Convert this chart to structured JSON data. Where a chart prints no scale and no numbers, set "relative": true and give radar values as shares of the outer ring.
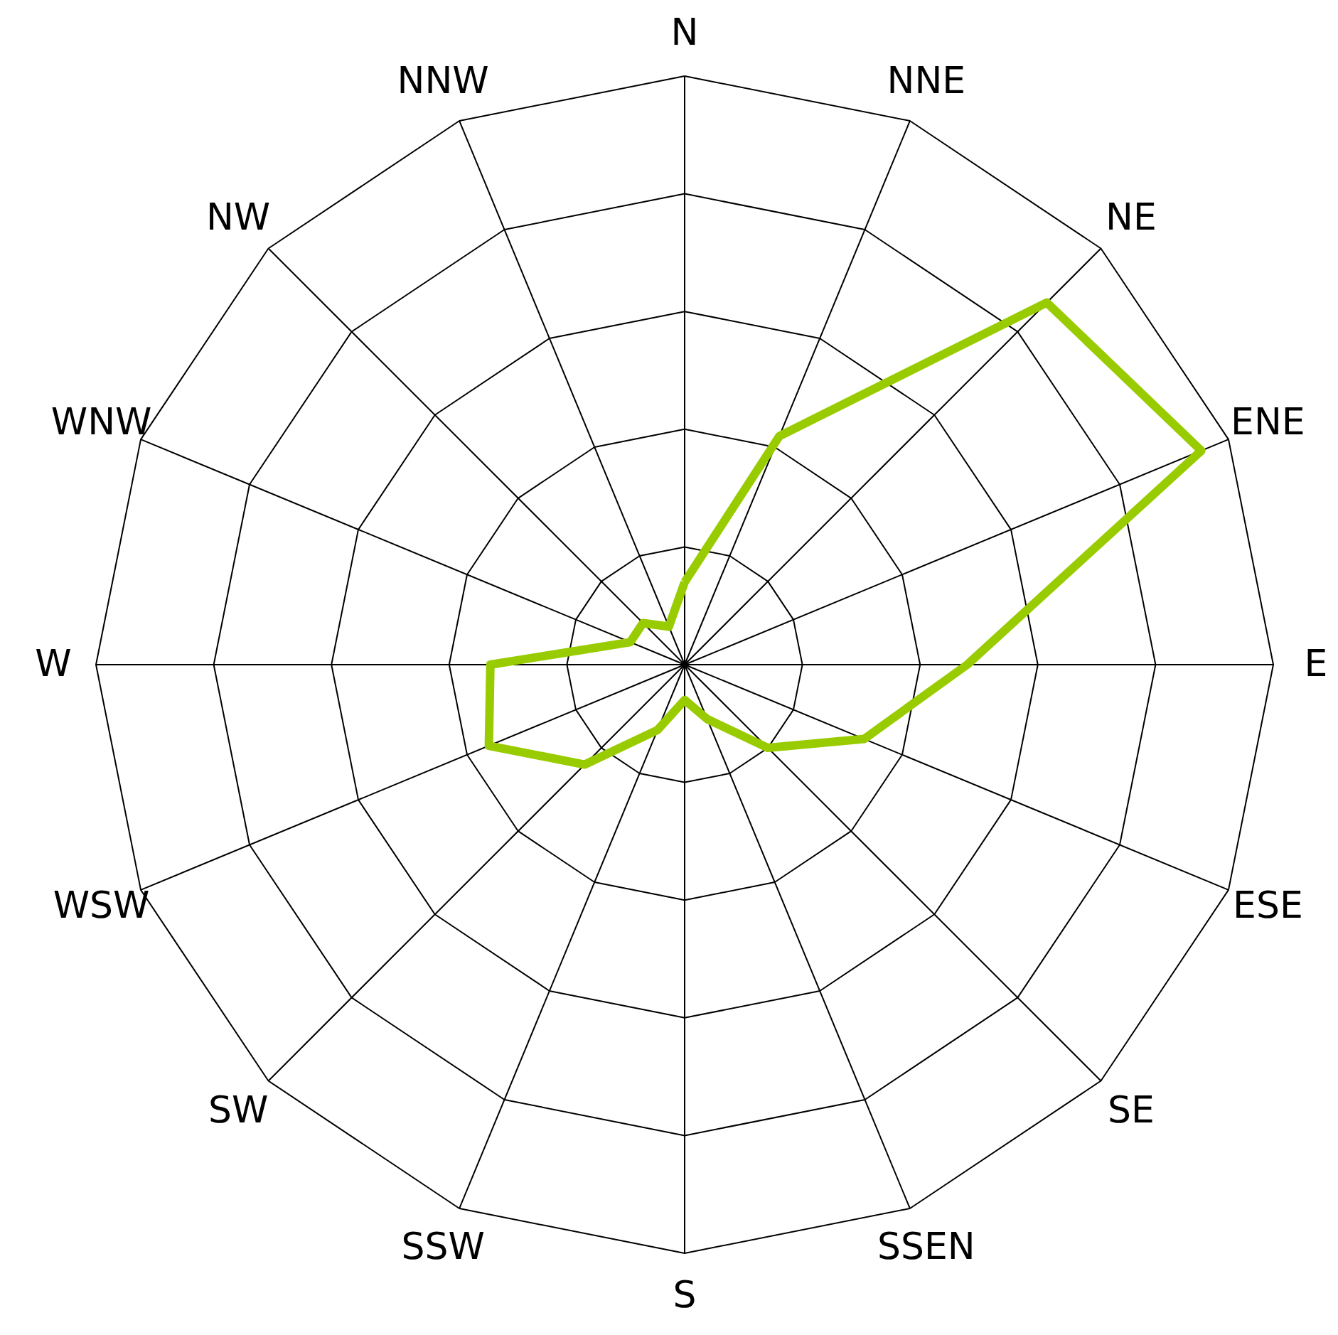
{
  "chart_data": {
    "type": "radar",
    "relative": true,
    "grid": true,
    "marker": "none",
    "line_style": "solid",
    "categories": [
      "N",
      "NNE",
      "NE",
      "ENE",
      "E",
      "ESE",
      "SE",
      "SSEN",
      "S",
      "SSW",
      "SW",
      "WSW",
      "W",
      "WNW",
      "NW",
      "NNW"
    ],
    "series": [
      {
        "color": "#99cc00",
        "values": [
          0.14,
          0.42,
          0.87,
          0.95,
          0.48,
          0.33,
          0.2,
          0.1,
          0.06,
          0.12,
          0.24,
          0.36,
          0.33,
          0.1,
          0.1,
          0.07
        ]
      }
    ]
  }
}
